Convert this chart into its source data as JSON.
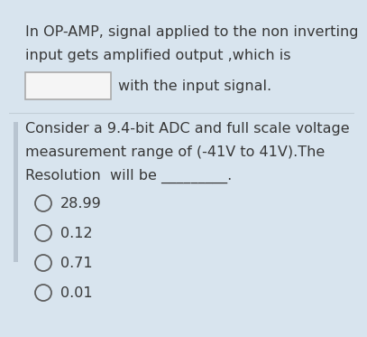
{
  "bg_color": "#d8e4ee",
  "left_bar_color": "#b8c4d0",
  "text_color": "#383838",
  "line1": "In OP-AMP, signal applied to the non inverting",
  "line2": "input gets amplified output ,which is",
  "line3": "with the input signal.",
  "q_line1": "Consider a 9.4-bit ADC and full scale voltage",
  "q_line2": "measurement range of (-41V to 41V).The",
  "q_line3": "Resolution  will be _________.",
  "options": [
    "28.99",
    "0.12",
    "0.71",
    "0.01"
  ],
  "font_size": 11.5,
  "option_font_size": 11.5
}
